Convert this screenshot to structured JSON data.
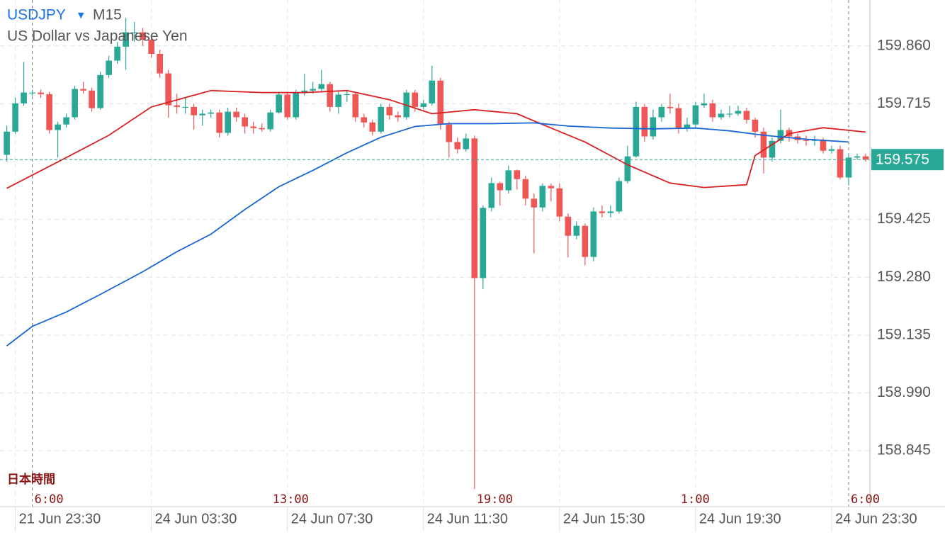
{
  "chart_data": {
    "type": "candlestick",
    "symbol": "USDJPY",
    "symbol_marker": "▾",
    "timeframe": "M15",
    "title": "US Dollar vs Japanese Yen",
    "up_color": "#2aa896",
    "down_color": "#ef5656",
    "open": [
      159.587,
      159.645,
      159.716,
      159.743,
      159.743,
      159.739,
      159.649,
      159.663,
      159.681,
      159.752,
      159.748,
      159.704,
      159.787,
      159.823,
      159.858,
      159.894,
      159.894,
      159.876,
      159.84,
      159.791,
      159.711,
      159.707,
      159.707,
      159.686,
      159.69,
      159.693,
      159.642,
      159.695,
      159.681,
      159.658,
      159.654,
      159.651,
      159.693,
      159.738,
      159.681,
      159.743,
      159.748,
      159.752,
      159.764,
      159.707,
      159.738,
      159.739,
      159.681,
      159.668,
      159.645,
      159.707,
      159.686,
      159.681,
      159.743,
      159.707,
      159.716,
      159.773,
      159.663,
      159.619,
      159.601,
      159.628,
      159.278,
      159.454,
      159.516,
      159.498,
      159.548,
      159.526,
      159.477,
      159.455,
      159.509,
      159.503,
      159.432,
      159.384,
      159.409,
      159.331,
      159.445,
      159.441,
      159.445,
      159.521,
      159.583,
      159.707,
      159.633,
      159.681,
      159.707,
      159.704,
      159.654,
      159.663,
      159.711,
      159.716,
      159.681,
      159.69,
      159.69,
      159.697,
      159.675,
      159.645,
      159.58,
      159.622,
      159.649,
      159.633,
      159.624,
      159.622,
      159.624,
      159.597,
      159.601,
      159.53,
      159.58,
      159.583
    ],
    "high": [
      159.66,
      159.73,
      159.82,
      159.75,
      159.75,
      159.745,
      159.67,
      159.69,
      159.76,
      159.77,
      159.755,
      159.795,
      159.835,
      159.87,
      159.93,
      159.92,
      159.905,
      159.885,
      159.85,
      159.8,
      159.74,
      159.73,
      159.715,
      159.7,
      159.7,
      159.7,
      159.705,
      159.705,
      159.69,
      159.67,
      159.665,
      159.7,
      159.745,
      159.745,
      159.75,
      159.79,
      159.77,
      159.8,
      159.77,
      159.745,
      159.75,
      159.745,
      159.69,
      159.675,
      159.715,
      159.715,
      159.695,
      159.75,
      159.75,
      159.725,
      159.81,
      159.78,
      159.67,
      159.63,
      159.64,
      159.635,
      159.46,
      159.53,
      159.52,
      159.56,
      159.55,
      159.535,
      159.49,
      159.515,
      159.515,
      159.515,
      159.44,
      159.42,
      159.415,
      159.455,
      159.46,
      159.46,
      159.53,
      159.61,
      159.72,
      159.715,
      159.7,
      159.715,
      159.74,
      159.715,
      159.68,
      159.72,
      159.74,
      159.725,
      159.7,
      159.71,
      159.71,
      159.705,
      159.68,
      159.655,
      159.63,
      159.7,
      159.655,
      159.64,
      159.635,
      159.635,
      159.63,
      159.61,
      159.61,
      159.59,
      159.59,
      159.59
    ],
    "low": [
      159.57,
      159.64,
      159.71,
      159.735,
      159.73,
      159.64,
      159.58,
      159.655,
      159.675,
      159.74,
      159.695,
      159.7,
      159.78,
      159.815,
      159.8,
      159.87,
      159.86,
      159.83,
      159.78,
      159.68,
      159.69,
      159.69,
      159.65,
      159.66,
      159.68,
      159.63,
      159.635,
      159.67,
      159.64,
      159.64,
      159.645,
      159.645,
      159.69,
      159.675,
      159.675,
      159.735,
      159.74,
      159.745,
      159.695,
      159.69,
      159.72,
      159.67,
      159.655,
      159.635,
      159.64,
      159.675,
      159.67,
      159.675,
      159.695,
      159.7,
      159.71,
      159.65,
      159.58,
      159.59,
      159.595,
      158.749,
      159.25,
      159.445,
      159.46,
      159.49,
      159.5,
      159.46,
      159.34,
      159.445,
      159.47,
      159.42,
      159.33,
      159.375,
      159.31,
      159.32,
      159.43,
      159.43,
      159.44,
      159.515,
      159.58,
      159.62,
      159.625,
      159.67,
      159.69,
      159.64,
      159.645,
      159.655,
      159.705,
      159.67,
      159.675,
      159.68,
      159.685,
      159.665,
      159.63,
      159.54,
      159.57,
      159.615,
      159.62,
      159.615,
      159.61,
      159.61,
      159.59,
      159.59,
      159.525,
      159.51,
      159.575,
      159.57
    ],
    "close": [
      159.645,
      159.716,
      159.743,
      159.743,
      159.739,
      159.649,
      159.663,
      159.681,
      159.752,
      159.748,
      159.704,
      159.787,
      159.823,
      159.858,
      159.894,
      159.894,
      159.876,
      159.84,
      159.791,
      159.711,
      159.707,
      159.707,
      159.686,
      159.69,
      159.693,
      159.642,
      159.695,
      159.681,
      159.658,
      159.654,
      159.651,
      159.693,
      159.738,
      159.681,
      159.743,
      159.748,
      159.752,
      159.764,
      159.707,
      159.738,
      159.739,
      159.681,
      159.668,
      159.645,
      159.707,
      159.686,
      159.681,
      159.743,
      159.707,
      159.716,
      159.773,
      159.663,
      159.619,
      159.601,
      159.628,
      159.278,
      159.454,
      159.516,
      159.498,
      159.548,
      159.526,
      159.477,
      159.455,
      159.509,
      159.503,
      159.432,
      159.384,
      159.409,
      159.331,
      159.445,
      159.441,
      159.445,
      159.521,
      159.583,
      159.707,
      159.633,
      159.681,
      159.707,
      159.704,
      159.654,
      159.663,
      159.711,
      159.716,
      159.681,
      159.69,
      159.69,
      159.697,
      159.675,
      159.645,
      159.58,
      159.622,
      159.649,
      159.633,
      159.624,
      159.622,
      159.624,
      159.597,
      159.601,
      159.53,
      159.58,
      159.583,
      159.575
    ],
    "lines": [
      {
        "color": "#d91f1f",
        "x": [
          0,
          6,
          12,
          17,
          24,
          30,
          35,
          40,
          45,
          50,
          55,
          60,
          63,
          68,
          73,
          78,
          82,
          87,
          88,
          92,
          96,
          101
        ],
        "values": [
          159.503,
          159.569,
          159.636,
          159.707,
          159.748,
          159.743,
          159.743,
          159.748,
          159.725,
          159.69,
          159.7,
          159.69,
          159.663,
          159.619,
          159.562,
          159.516,
          159.505,
          159.512,
          159.585,
          159.64,
          159.655,
          159.644
        ]
      },
      {
        "color": "#1766d6",
        "x": [
          0,
          3,
          7,
          11,
          16,
          20,
          24,
          28,
          32,
          36,
          40,
          44,
          48,
          52,
          57,
          62,
          66,
          71,
          76,
          81,
          85,
          89,
          94,
          99
        ],
        "values": [
          159.108,
          159.157,
          159.193,
          159.237,
          159.294,
          159.344,
          159.388,
          159.45,
          159.507,
          159.548,
          159.592,
          159.631,
          159.658,
          159.665,
          159.665,
          159.667,
          159.659,
          159.654,
          159.652,
          159.654,
          159.647,
          159.636,
          159.626,
          159.619
        ]
      }
    ],
    "current_price": 159.575,
    "current_color": "#2aa896",
    "ylim": [
      158.705,
      159.975
    ],
    "yticks": [
      158.845,
      {
        "value": 158.99,
        "label": "158.990"
      },
      159.135,
      {
        "value": 159.28,
        "label": "159.280"
      },
      159.425,
      159.715,
      {
        "value": 159.86,
        "label": "159.860"
      }
    ],
    "xlim": [
      -0.8,
      101.5
    ],
    "xticks": [
      {
        "value": 1,
        "label": "21 Jun 23:30"
      },
      {
        "value": 17,
        "label": "24 Jun 03:30"
      },
      {
        "value": 33,
        "label": "24 Jun 07:30"
      },
      {
        "value": 49,
        "label": "24 Jun 11:30"
      },
      {
        "value": 65,
        "label": "24 Jun 15:30"
      },
      {
        "value": 81,
        "label": "24 Jun 19:30"
      },
      {
        "value": 97,
        "label": "24 Jun 23:30"
      }
    ],
    "local_time_label": "日本時間",
    "local_ticks": [
      {
        "value": 3,
        "label": "6:00",
        "separator": true
      },
      {
        "value": 31,
        "label": "13:00"
      },
      {
        "value": 55,
        "label": "19:00"
      },
      {
        "value": 79,
        "label": "1:00"
      },
      {
        "value": 99,
        "label": "6:00",
        "separator": true
      }
    ],
    "grid": true
  }
}
